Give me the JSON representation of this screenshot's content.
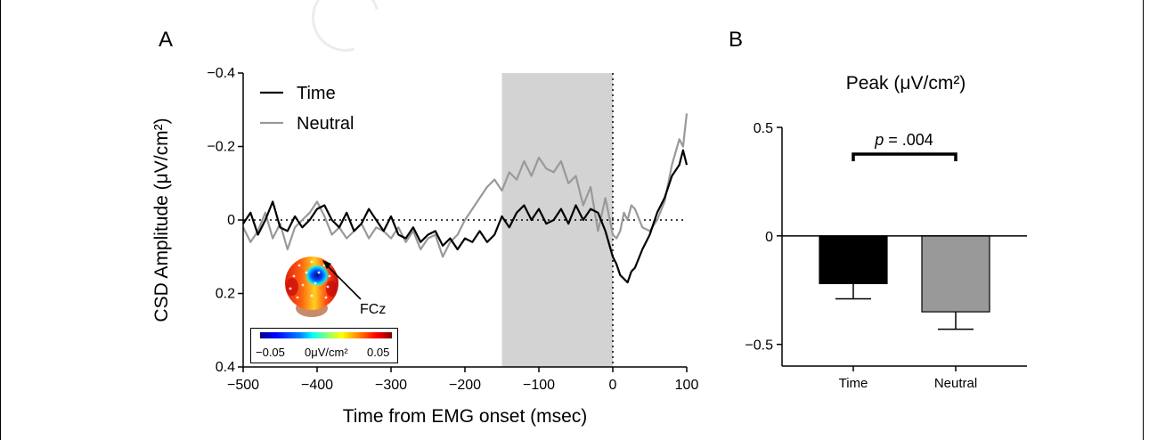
{
  "panel_labels": {
    "a": "A",
    "b": "B"
  },
  "colors": {
    "time": "#000000",
    "neutral": "#999999",
    "shade": "#d3d3d3",
    "bar_time": "#000000",
    "bar_neutral": "#999999"
  },
  "topomap": {
    "electrode_label": "FCz",
    "colorbar_min": "−0.05",
    "colorbar_mid": "0μV/cm²",
    "colorbar_max": "0.05"
  },
  "chart_data": [
    {
      "type": "line",
      "panel": "A",
      "title": "",
      "xlabel": "Time from EMG onset (msec)",
      "ylabel": "CSD Amplitude (μV/cm²)",
      "xlim": [
        -500,
        100
      ],
      "ylim": [
        0.4,
        -0.4
      ],
      "y_inverted": true,
      "x_ticks": [
        -500,
        -400,
        -300,
        -200,
        -100,
        0,
        100
      ],
      "x_tick_labels": [
        "−500",
        "−400",
        "−300",
        "−200",
        "−100",
        "0",
        "100"
      ],
      "y_ticks": [
        -0.4,
        -0.2,
        0,
        0.2,
        0.4
      ],
      "y_tick_labels": [
        "−0.4",
        "−0.2",
        "0",
        "0.2",
        "0.4"
      ],
      "shaded_region": [
        -150,
        0
      ],
      "reference_lines": {
        "y_zero": true,
        "x_zero": true
      },
      "legend_position": "top-left",
      "series": [
        {
          "name": "Time",
          "x": [
            -500,
            -490,
            -480,
            -470,
            -460,
            -450,
            -440,
            -430,
            -420,
            -410,
            -400,
            -390,
            -380,
            -370,
            -360,
            -350,
            -340,
            -330,
            -320,
            -310,
            -300,
            -290,
            -280,
            -270,
            -260,
            -250,
            -240,
            -230,
            -220,
            -210,
            -200,
            -190,
            -180,
            -170,
            -160,
            -150,
            -140,
            -130,
            -120,
            -110,
            -100,
            -90,
            -80,
            -70,
            -60,
            -50,
            -40,
            -30,
            -20,
            -10,
            0,
            5,
            10,
            15,
            20,
            25,
            30,
            40,
            50,
            60,
            70,
            80,
            90,
            95,
            100
          ],
          "y": [
            0.01,
            -0.02,
            0.04,
            0.0,
            -0.05,
            0.02,
            0.03,
            -0.01,
            0.02,
            0.0,
            -0.03,
            -0.04,
            0.0,
            0.02,
            -0.02,
            0.03,
            0.01,
            -0.03,
            0.0,
            0.03,
            -0.01,
            0.04,
            0.05,
            0.02,
            0.06,
            0.04,
            0.03,
            0.07,
            0.05,
            0.08,
            0.05,
            0.06,
            0.03,
            0.06,
            0.04,
            -0.01,
            0.02,
            -0.02,
            -0.04,
            0.0,
            -0.03,
            0.01,
            0.0,
            -0.03,
            0.01,
            -0.04,
            0.0,
            -0.03,
            -0.02,
            0.03,
            0.1,
            0.12,
            0.15,
            0.16,
            0.17,
            0.14,
            0.13,
            0.08,
            0.04,
            -0.02,
            -0.06,
            -0.12,
            -0.15,
            -0.19,
            -0.15
          ]
        },
        {
          "name": "Neutral",
          "x": [
            -500,
            -490,
            -480,
            -470,
            -460,
            -450,
            -440,
            -430,
            -420,
            -410,
            -400,
            -390,
            -380,
            -370,
            -360,
            -350,
            -340,
            -330,
            -320,
            -310,
            -300,
            -290,
            -280,
            -270,
            -260,
            -250,
            -240,
            -230,
            -220,
            -210,
            -200,
            -190,
            -180,
            -170,
            -160,
            -150,
            -140,
            -130,
            -120,
            -110,
            -100,
            -90,
            -80,
            -70,
            -60,
            -50,
            -40,
            -30,
            -20,
            -10,
            0,
            5,
            10,
            15,
            20,
            25,
            30,
            40,
            50,
            60,
            70,
            80,
            90,
            95,
            100
          ],
          "y": [
            0.02,
            0.06,
            0.03,
            -0.02,
            0.05,
            0.01,
            0.08,
            0.02,
            0.0,
            -0.02,
            -0.05,
            -0.01,
            0.04,
            0.02,
            0.05,
            0.03,
            0.01,
            0.05,
            0.02,
            0.03,
            0.05,
            0.02,
            0.06,
            0.03,
            0.08,
            0.05,
            0.04,
            0.1,
            0.06,
            0.04,
            0.0,
            -0.03,
            -0.06,
            -0.09,
            -0.11,
            -0.08,
            -0.13,
            -0.11,
            -0.16,
            -0.12,
            -0.17,
            -0.14,
            -0.13,
            -0.16,
            -0.1,
            -0.12,
            -0.04,
            -0.09,
            0.03,
            -0.06,
            0.04,
            0.05,
            0.03,
            -0.02,
            0.0,
            -0.04,
            -0.03,
            0.02,
            0.03,
            0.0,
            -0.05,
            -0.15,
            -0.22,
            -0.2,
            -0.29
          ]
        }
      ]
    },
    {
      "type": "bar",
      "panel": "B",
      "title": "Peak (μV/cm²)",
      "categories": [
        "Time",
        "Neutral"
      ],
      "values": [
        -0.22,
        -0.35
      ],
      "errors": [
        0.07,
        0.08
      ],
      "ylim": [
        -0.6,
        0.5
      ],
      "y_ticks": [
        0.5,
        0,
        -0.5
      ],
      "y_tick_labels": [
        "0.5",
        "0",
        "−0.5"
      ],
      "annotation": {
        "stat": "p",
        "text": " = .004"
      }
    }
  ]
}
